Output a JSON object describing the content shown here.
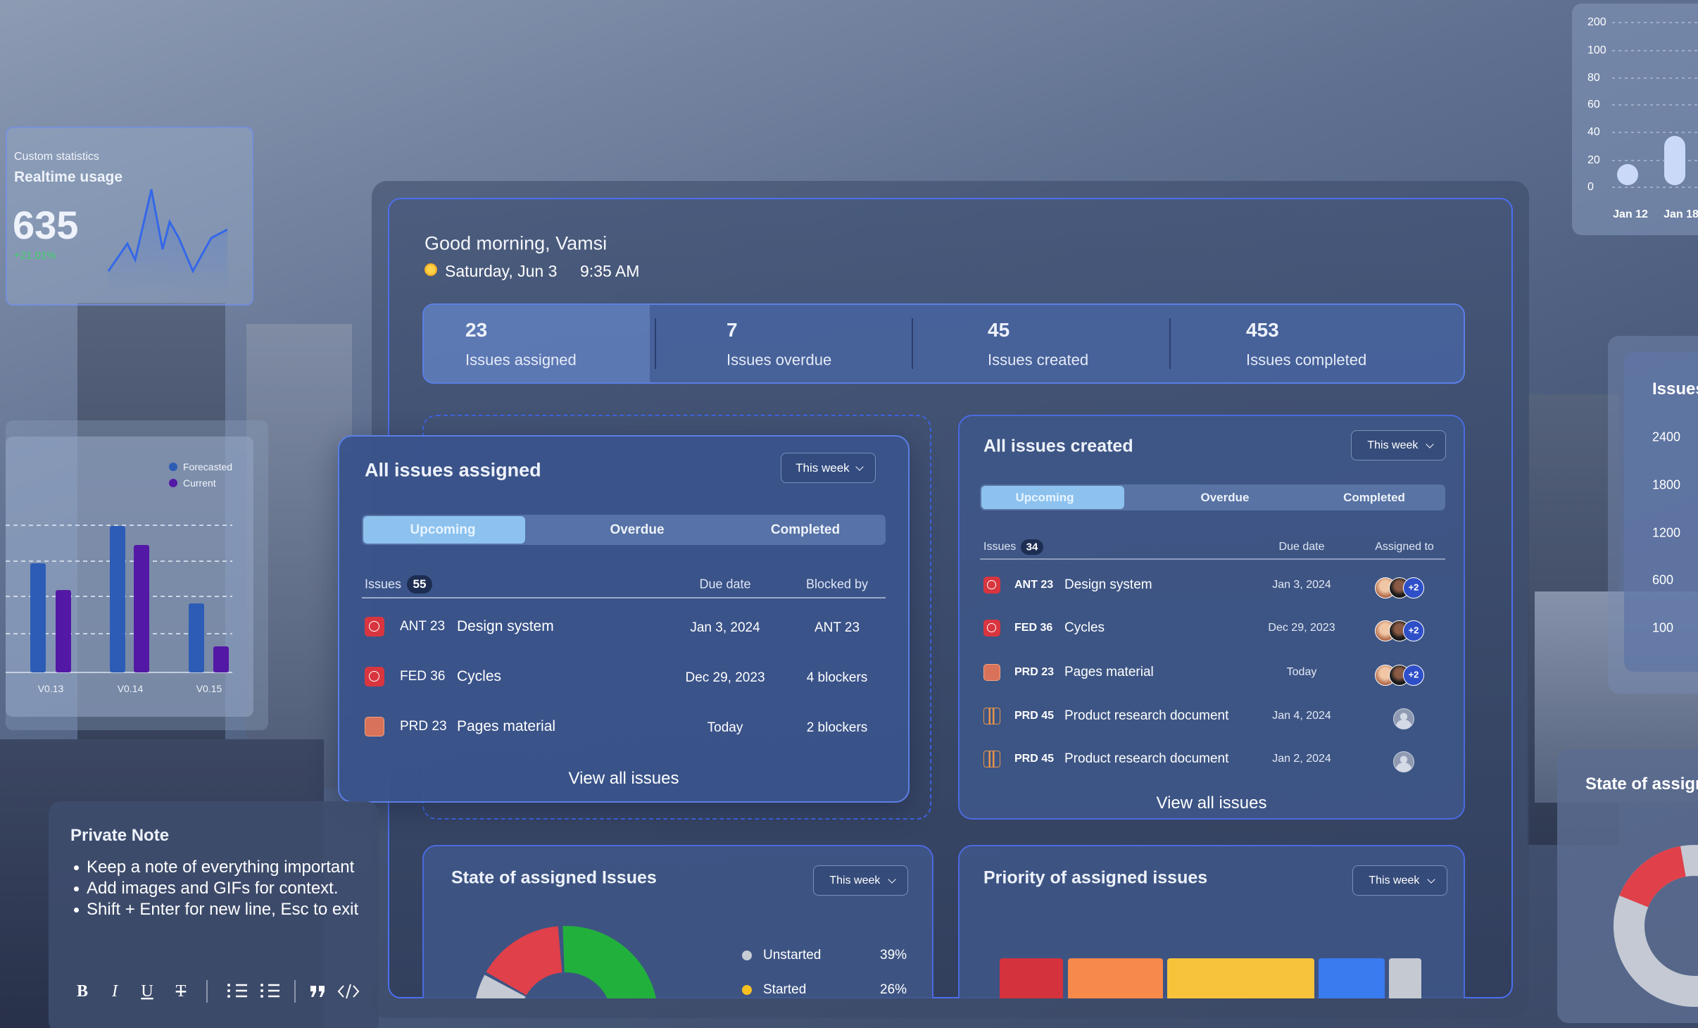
{
  "widgets": {
    "realtime": {
      "label": "Custom statistics",
      "title": "Realtime usage",
      "value": "635",
      "change": "+21.01%"
    },
    "release_chart": {
      "legend": [
        "Forecasted",
        "Current"
      ],
      "categories": [
        "V0.13",
        "V0.14",
        "V0.15"
      ]
    },
    "usage_chart": {
      "yticks": [
        "200",
        "100",
        "80",
        "60",
        "40",
        "20",
        "0"
      ],
      "categories": [
        "Jan 12",
        "Jan 18"
      ]
    },
    "issues_chart": {
      "title": "Issues",
      "yticks": [
        "2400",
        "1800",
        "1200",
        "600",
        "100"
      ]
    },
    "state_preview": {
      "title": "State of assigned Issues"
    },
    "note": {
      "title": "Private Note",
      "bullets": [
        "Keep a note of everything important",
        "Add images and GIFs for context.",
        "Shift + Enter for new line, Esc to exit"
      ]
    }
  },
  "dashboard": {
    "greeting": "Good morning, Vamsi",
    "date": "Saturday, Jun 3",
    "time": "9:35 AM",
    "stats": [
      {
        "value": "23",
        "label": "Issues assigned"
      },
      {
        "value": "7",
        "label": "Issues overdue"
      },
      {
        "value": "45",
        "label": "Issues created"
      },
      {
        "value": "453",
        "label": "Issues completed"
      }
    ],
    "assigned": {
      "title": "All issues assigned",
      "filter": "This week",
      "tabs": [
        "Upcoming",
        "Overdue",
        "Completed"
      ],
      "columns": [
        "Issues",
        "Due date",
        "Blocked by"
      ],
      "count": "55",
      "rows": [
        [
          "ANT 23",
          "Design system",
          "Jan 3, 2024",
          "ANT 23"
        ],
        [
          "FED 36",
          "Cycles",
          "Dec 29, 2023",
          "4 blockers"
        ],
        [
          "PRD 23",
          "Pages material",
          "Today",
          "2 blockers"
        ]
      ],
      "footer": "View all issues"
    },
    "created": {
      "title": "All issues created",
      "filter": "This week",
      "tabs": [
        "Upcoming",
        "Overdue",
        "Completed"
      ],
      "columns": [
        "Issues",
        "Due date",
        "Assigned to"
      ],
      "count": "34",
      "rows": [
        [
          "ANT 23",
          "Design system",
          "Jan 3, 2024",
          "+2"
        ],
        [
          "FED 36",
          "Cycles",
          "Dec 29, 2023",
          "+2"
        ],
        [
          "PRD 23",
          "Pages material",
          "Today",
          "+2"
        ],
        [
          "PRD 45",
          "Product research document",
          "Jan 4, 2024"
        ],
        [
          "PRD 45",
          "Product research document",
          "Jan 2, 2024"
        ]
      ],
      "footer": "View all issues"
    },
    "state": {
      "title": "State of assigned Issues",
      "filter": "This week",
      "legend": [
        {
          "label": "Unstarted",
          "value": "39%"
        },
        {
          "label": "Started",
          "value": "26%"
        }
      ]
    },
    "priority": {
      "title": "Priority of assigned issues",
      "filter": "This week"
    }
  }
}
